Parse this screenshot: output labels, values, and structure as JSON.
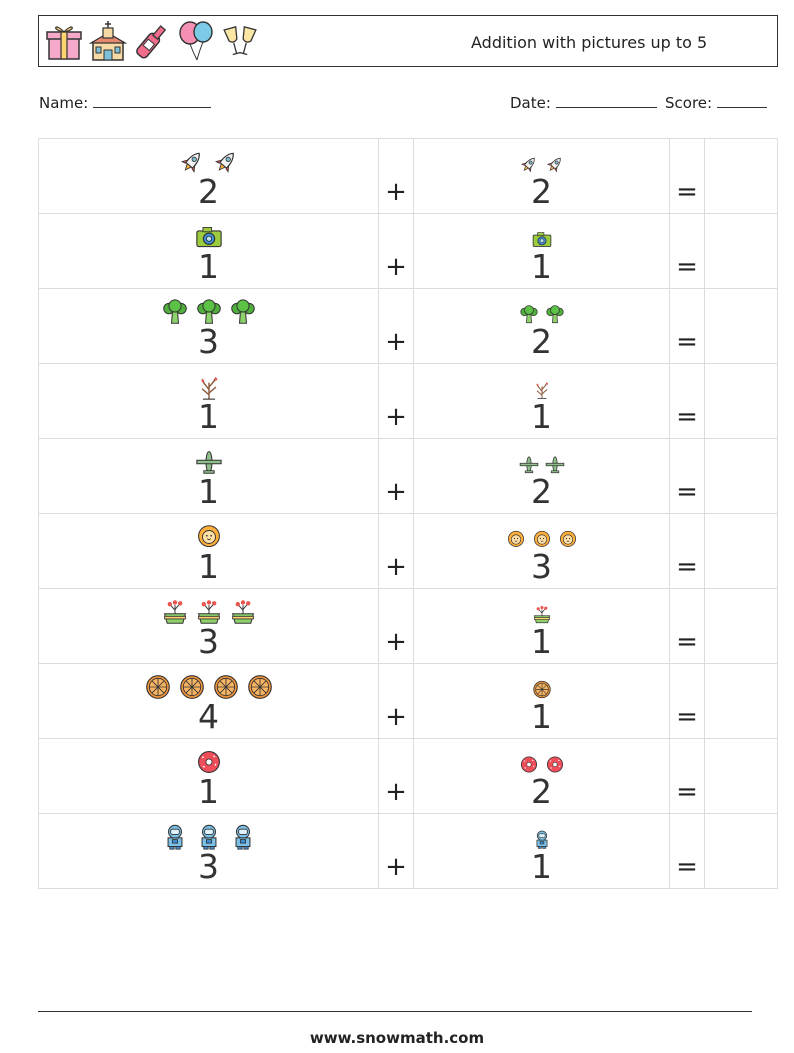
{
  "header": {
    "title": "Addition with pictures up to 5",
    "icons": [
      "gift-icon",
      "church-icon",
      "champagne-bottle-icon",
      "balloons-icon",
      "cheers-glasses-icon"
    ]
  },
  "info": {
    "name_label": "Name:",
    "date_label": "Date:",
    "score_label": "Score:"
  },
  "operators": {
    "plus": "+",
    "equals": "="
  },
  "problems": [
    {
      "a": 2,
      "b": 2,
      "icon": "rocket-icon"
    },
    {
      "a": 1,
      "b": 1,
      "icon": "camera-icon"
    },
    {
      "a": 3,
      "b": 2,
      "icon": "broccoli-icon"
    },
    {
      "a": 1,
      "b": 1,
      "icon": "bare-tree-icon"
    },
    {
      "a": 1,
      "b": 2,
      "icon": "airplane-icon"
    },
    {
      "a": 1,
      "b": 3,
      "icon": "lion-icon"
    },
    {
      "a": 3,
      "b": 1,
      "icon": "flower-pot-icon"
    },
    {
      "a": 4,
      "b": 1,
      "icon": "pizza-icon"
    },
    {
      "a": 1,
      "b": 2,
      "icon": "donut-icon"
    },
    {
      "a": 3,
      "b": 1,
      "icon": "astronaut-icon"
    }
  ],
  "footer": {
    "url": "www.snowmath.com"
  }
}
